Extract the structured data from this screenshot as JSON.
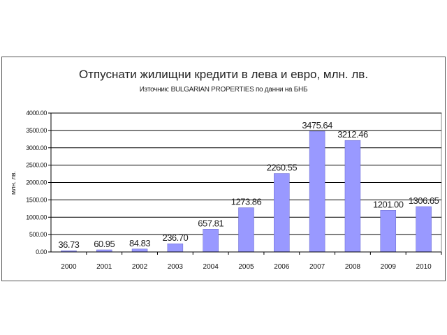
{
  "chart_data": {
    "type": "bar",
    "title": "Отпуснати жилищни кредити в лева и евро, млн. лв.",
    "subtitle": "Източник: BULGARIAN PROPERTIES по данни на БНБ",
    "xlabel": "",
    "ylabel": "млн. лв.",
    "categories": [
      "2000",
      "2001",
      "2002",
      "2003",
      "2004",
      "2005",
      "2006",
      "2007",
      "2008",
      "2009",
      "2010"
    ],
    "values": [
      36.73,
      60.95,
      84.83,
      236.7,
      657.81,
      1273.86,
      2260.55,
      3475.64,
      3212.46,
      1201.0,
      1306.65
    ],
    "data_labels": [
      "36.73",
      "60.95",
      "84.83",
      "236.70",
      "657.81",
      "1273.86",
      "2260.55",
      "3475.64",
      "3212.46",
      "1201.00",
      "1306.65"
    ],
    "ylim": [
      0,
      4000
    ],
    "yticks": [
      "0.00",
      "500.00",
      "1000.00",
      "1500.00",
      "2000.00",
      "2500.00",
      "3000.00",
      "3500.00",
      "4000.00"
    ],
    "grid": true,
    "legend": "none",
    "bar_color": "#9999ff"
  }
}
